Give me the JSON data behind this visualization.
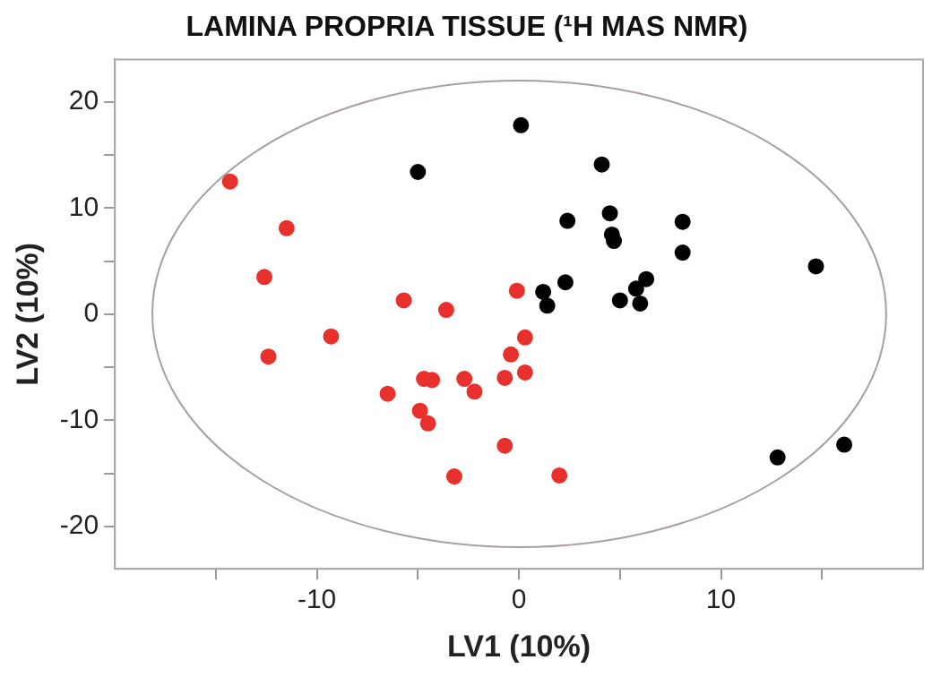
{
  "chart_data": {
    "type": "scatter",
    "title": "LAMINA PROPRIA TISSUE (¹H MAS NMR)",
    "xlabel": "LV1 (10%)",
    "ylabel": "LV2 (10%)",
    "xlim": [
      -20,
      20
    ],
    "ylim": [
      -24,
      24
    ],
    "xticks": [
      {
        "value": -15,
        "label": null
      },
      -10,
      {
        "value": -5,
        "label": null
      },
      0,
      {
        "value": 5,
        "label": null
      },
      10,
      {
        "value": 15,
        "label": null
      }
    ],
    "yticks": [
      -20,
      {
        "value": -15,
        "label": null
      },
      -10,
      {
        "value": -5,
        "label": null
      },
      0,
      {
        "value": 5,
        "label": null
      },
      10,
      {
        "value": 15,
        "label": null
      },
      20
    ],
    "grid": false,
    "legend": false,
    "marker": "circle",
    "series": [
      {
        "color": "#e8302c",
        "x": [
          -14.3,
          -11.5,
          -12.6,
          -12.4,
          -9.3,
          -5.7,
          -3.6,
          -6.5,
          -4.7,
          -4.3,
          -4.9,
          -4.5,
          -2.7,
          -2.2,
          -3.2,
          -0.7,
          -0.7,
          -0.4,
          -0.1,
          0.3,
          0.3,
          2.0
        ],
        "values": [
          12.5,
          8.1,
          3.5,
          -4.0,
          -2.1,
          1.3,
          0.4,
          -7.5,
          -6.1,
          -6.2,
          -9.1,
          -10.3,
          -6.1,
          -7.3,
          -15.3,
          -6.0,
          -12.4,
          -3.8,
          2.2,
          -2.2,
          -5.5,
          -15.2
        ]
      },
      {
        "color": "#000000",
        "x": [
          -5.0,
          0.1,
          4.1,
          2.4,
          4.5,
          4.6,
          4.7,
          8.1,
          8.1,
          14.7,
          2.3,
          1.2,
          1.4,
          5.0,
          5.8,
          6.3,
          6.0,
          12.8,
          16.1
        ],
        "values": [
          13.4,
          17.8,
          14.1,
          8.8,
          9.5,
          7.5,
          6.9,
          8.7,
          5.8,
          4.5,
          3.0,
          2.1,
          0.8,
          1.3,
          2.4,
          3.3,
          1.0,
          -13.5,
          -12.3
        ]
      }
    ]
  }
}
